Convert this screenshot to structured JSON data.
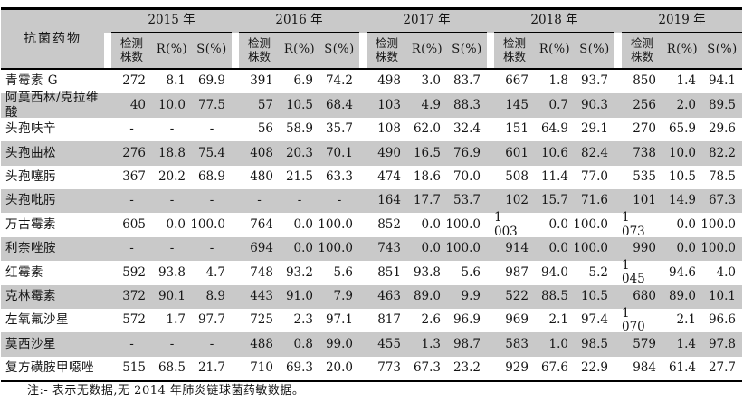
{
  "table": {
    "title_column_header": "抗菌药物",
    "years": [
      "2015 年",
      "2016 年",
      "2017 年",
      "2018 年",
      "2019 年"
    ],
    "subheaders": {
      "strains": "检测株数",
      "resistant": "R(%)",
      "susceptible": "S(%)"
    },
    "no_data_marker": "-",
    "rows": [
      {
        "drug": "青霉素 G",
        "cells": [
          [
            "272",
            "8.1",
            "69.9"
          ],
          [
            "391",
            "6.9",
            "74.2"
          ],
          [
            "498",
            "3.0",
            "83.7"
          ],
          [
            "667",
            "1.8",
            "93.7"
          ],
          [
            "850",
            "1.4",
            "94.1"
          ]
        ]
      },
      {
        "drug": "阿莫西林/克拉维酸",
        "cells": [
          [
            "40",
            "10.0",
            "77.5"
          ],
          [
            "57",
            "10.5",
            "68.4"
          ],
          [
            "103",
            "4.9",
            "88.3"
          ],
          [
            "145",
            "0.7",
            "90.3"
          ],
          [
            "256",
            "2.0",
            "89.5"
          ]
        ]
      },
      {
        "drug": "头孢呋辛",
        "cells": [
          [
            "-",
            "-",
            "-"
          ],
          [
            "56",
            "58.9",
            "35.7"
          ],
          [
            "108",
            "62.0",
            "32.4"
          ],
          [
            "151",
            "64.9",
            "29.1"
          ],
          [
            "270",
            "65.9",
            "29.6"
          ]
        ]
      },
      {
        "drug": "头孢曲松",
        "cells": [
          [
            "276",
            "18.8",
            "75.4"
          ],
          [
            "408",
            "20.3",
            "70.1"
          ],
          [
            "490",
            "16.5",
            "76.9"
          ],
          [
            "601",
            "10.6",
            "82.4"
          ],
          [
            "738",
            "10.0",
            "82.2"
          ]
        ]
      },
      {
        "drug": "头孢噻肟",
        "cells": [
          [
            "367",
            "20.2",
            "68.9"
          ],
          [
            "480",
            "21.5",
            "63.3"
          ],
          [
            "474",
            "18.6",
            "70.0"
          ],
          [
            "508",
            "11.4",
            "77.0"
          ],
          [
            "535",
            "10.5",
            "78.5"
          ]
        ]
      },
      {
        "drug": "头孢吡肟",
        "cells": [
          [
            "-",
            "-",
            "-"
          ],
          [
            "-",
            "-",
            "-"
          ],
          [
            "164",
            "17.7",
            "53.7"
          ],
          [
            "102",
            "15.7",
            "71.6"
          ],
          [
            "101",
            "14.9",
            "67.3"
          ]
        ]
      },
      {
        "drug": "万古霉素",
        "cells": [
          [
            "605",
            "0.0",
            "100.0"
          ],
          [
            "764",
            "0.0",
            "100.0"
          ],
          [
            "852",
            "0.0",
            "100.0"
          ],
          [
            "1 003",
            "0.0",
            "100.0"
          ],
          [
            "1 073",
            "0.0",
            "100.0"
          ]
        ]
      },
      {
        "drug": "利奈唑胺",
        "cells": [
          [
            "-",
            "-",
            "-"
          ],
          [
            "694",
            "0.0",
            "100.0"
          ],
          [
            "743",
            "0.0",
            "100.0"
          ],
          [
            "914",
            "0.0",
            "100.0"
          ],
          [
            "990",
            "0.0",
            "100.0"
          ]
        ]
      },
      {
        "drug": "红霉素",
        "cells": [
          [
            "592",
            "93.8",
            "4.7"
          ],
          [
            "748",
            "93.2",
            "5.6"
          ],
          [
            "851",
            "93.8",
            "5.6"
          ],
          [
            "987",
            "94.0",
            "5.2"
          ],
          [
            "1 045",
            "94.6",
            "4.0"
          ]
        ]
      },
      {
        "drug": "克林霉素",
        "cells": [
          [
            "372",
            "90.1",
            "8.9"
          ],
          [
            "443",
            "91.0",
            "7.9"
          ],
          [
            "463",
            "89.0",
            "9.9"
          ],
          [
            "522",
            "88.5",
            "10.5"
          ],
          [
            "680",
            "89.0",
            "10.1"
          ]
        ]
      },
      {
        "drug": "左氧氟沙星",
        "cells": [
          [
            "572",
            "1.7",
            "97.7"
          ],
          [
            "725",
            "2.3",
            "97.1"
          ],
          [
            "817",
            "2.6",
            "96.9"
          ],
          [
            "969",
            "2.1",
            "97.4"
          ],
          [
            "1 070",
            "2.1",
            "96.6"
          ]
        ]
      },
      {
        "drug": "莫西沙星",
        "cells": [
          [
            "-",
            "-",
            "-"
          ],
          [
            "488",
            "0.8",
            "99.0"
          ],
          [
            "455",
            "1.3",
            "98.7"
          ],
          [
            "583",
            "1.0",
            "98.5"
          ],
          [
            "579",
            "1.4",
            "97.8"
          ]
        ]
      },
      {
        "drug": "复方磺胺甲噁唑",
        "cells": [
          [
            "515",
            "68.5",
            "21.7"
          ],
          [
            "710",
            "69.3",
            "20.0"
          ],
          [
            "773",
            "67.3",
            "23.2"
          ],
          [
            "929",
            "67.6",
            "22.9"
          ],
          [
            "984",
            "61.4",
            "27.7"
          ]
        ]
      }
    ],
    "note": "注:- 表示无数据,无 2014 年肺炎链球菌药敏数据。"
  },
  "colors": {
    "row_shade": "#c9c9c9",
    "header_shade": "#c9c9c9",
    "rule": "#000000",
    "text": "#151515",
    "background": "#ffffff"
  }
}
